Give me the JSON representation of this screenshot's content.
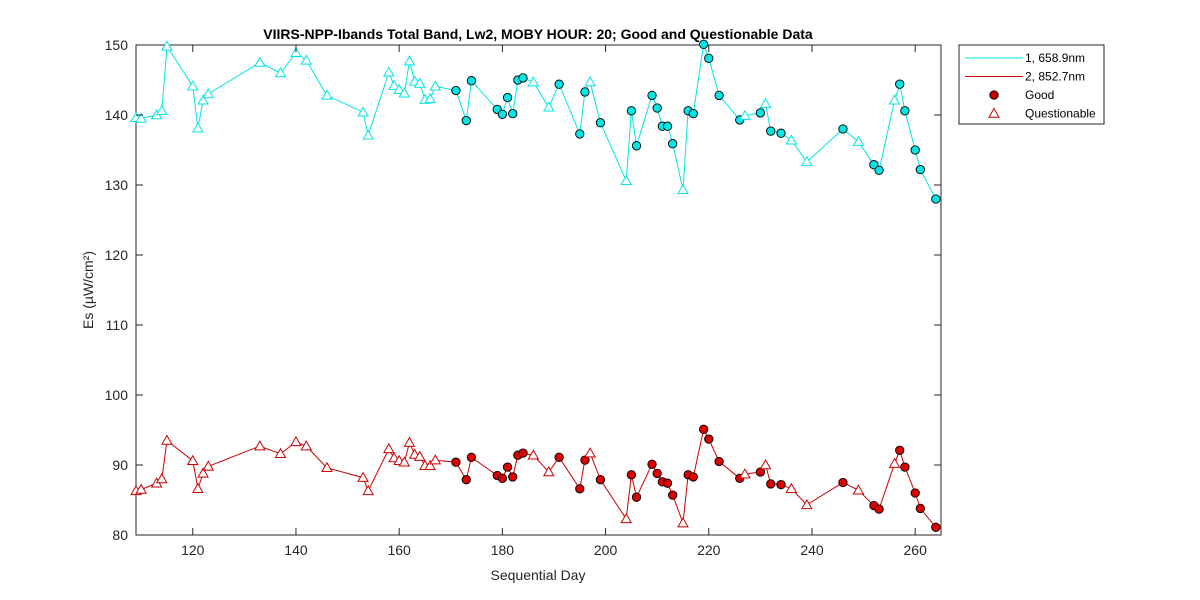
{
  "chart_data": {
    "type": "line",
    "title": "VIIRS-NPP-Ibands Total Band,  Lw2, MOBY HOUR: 20;  Good and Questionable Data",
    "xlabel": "Sequential Day",
    "ylabel": "Es (µW/cm²)",
    "xlim": [
      109,
      265
    ],
    "ylim": [
      80,
      150
    ],
    "x_ticks": [
      120,
      140,
      160,
      180,
      200,
      220,
      240,
      260
    ],
    "y_ticks": [
      80,
      90,
      100,
      110,
      120,
      130,
      140,
      150
    ],
    "grid": false,
    "legend_position": "outside-top-right",
    "legend": [
      {
        "label": "1, 658.9nm",
        "kind": "line",
        "color": "#00e5e5"
      },
      {
        "label": "2, 852.7nm",
        "kind": "line",
        "color": "#cc0000"
      },
      {
        "label": "Good",
        "kind": "marker-circle",
        "color": "#cc0000"
      },
      {
        "label": "Questionable",
        "kind": "marker-triangle",
        "color": "#cc0000"
      }
    ],
    "series": [
      {
        "name": "1, 658.9nm",
        "color": "#00e5e5",
        "fill": "#00e5e5",
        "x": [
          109,
          110,
          113,
          114,
          115,
          120,
          121,
          122,
          123,
          133,
          137,
          140,
          142,
          146,
          153,
          154,
          158,
          159,
          160,
          161,
          162,
          163,
          164,
          165,
          166,
          167,
          171,
          173,
          174,
          179,
          180,
          181,
          182,
          183,
          184,
          186,
          189,
          191,
          195,
          196,
          197,
          199,
          204,
          205,
          206,
          209,
          210,
          211,
          212,
          213,
          215,
          216,
          217,
          219,
          220,
          222,
          226,
          227,
          230,
          231,
          232,
          234,
          236,
          239,
          246,
          249,
          252,
          253,
          256,
          257,
          258,
          260,
          261,
          264
        ],
        "y": [
          139.6,
          139.5,
          140.0,
          140.6,
          149.8,
          144.1,
          138.1,
          142.1,
          143.0,
          147.5,
          146.0,
          148.9,
          147.8,
          142.8,
          140.4,
          137.1,
          146.1,
          144.2,
          143.6,
          143.1,
          147.7,
          144.8,
          144.5,
          142.2,
          142.3,
          144.1,
          143.5,
          139.2,
          144.9,
          140.8,
          140.1,
          142.5,
          140.2,
          145.0,
          145.3,
          144.7,
          141.1,
          144.4,
          137.3,
          143.3,
          144.7,
          138.9,
          130.6,
          140.6,
          135.6,
          142.8,
          141.0,
          138.4,
          138.4,
          135.9,
          129.3,
          140.6,
          140.2,
          150.1,
          148.1,
          142.8,
          139.3,
          139.9,
          140.3,
          141.6,
          137.7,
          137.4,
          136.4,
          133.3,
          138.0,
          136.2,
          132.9,
          132.1,
          142.1,
          144.4,
          140.6,
          135.0,
          132.2,
          128.0
        ],
        "quality": [
          "Q",
          "Q",
          "Q",
          "Q",
          "Q",
          "Q",
          "Q",
          "Q",
          "Q",
          "Q",
          "Q",
          "Q",
          "Q",
          "Q",
          "Q",
          "Q",
          "Q",
          "Q",
          "Q",
          "Q",
          "Q",
          "Q",
          "Q",
          "Q",
          "Q",
          "Q",
          "G",
          "G",
          "G",
          "G",
          "G",
          "G",
          "G",
          "G",
          "G",
          "Q",
          "Q",
          "G",
          "G",
          "G",
          "Q",
          "G",
          "Q",
          "G",
          "G",
          "G",
          "G",
          "G",
          "G",
          "G",
          "Q",
          "G",
          "G",
          "G",
          "G",
          "G",
          "G",
          "Q",
          "G",
          "Q",
          "G",
          "G",
          "Q",
          "Q",
          "G",
          "Q",
          "G",
          "G",
          "Q",
          "G",
          "G",
          "G",
          "G",
          "G"
        ]
      },
      {
        "name": "2, 852.7nm",
        "color": "#cc0000",
        "fill": "#dd0000",
        "x": [
          109,
          110,
          113,
          114,
          115,
          120,
          121,
          122,
          123,
          133,
          137,
          140,
          142,
          146,
          153,
          154,
          158,
          159,
          160,
          161,
          162,
          163,
          164,
          165,
          166,
          167,
          171,
          173,
          174,
          179,
          180,
          181,
          182,
          183,
          184,
          186,
          189,
          191,
          195,
          196,
          197,
          199,
          204,
          205,
          206,
          209,
          210,
          211,
          212,
          213,
          215,
          216,
          217,
          219,
          220,
          222,
          226,
          227,
          230,
          231,
          232,
          234,
          236,
          239,
          246,
          249,
          252,
          253,
          256,
          257,
          258,
          260,
          261,
          264
        ],
        "y": [
          86.3,
          86.5,
          87.4,
          88.0,
          93.5,
          90.6,
          86.6,
          88.8,
          89.8,
          92.7,
          91.6,
          93.3,
          92.7,
          89.6,
          88.2,
          86.3,
          92.3,
          91.0,
          90.6,
          90.4,
          93.2,
          91.5,
          91.2,
          89.9,
          89.9,
          90.7,
          90.4,
          87.9,
          91.1,
          88.5,
          88.1,
          89.7,
          88.3,
          91.4,
          91.7,
          91.4,
          89.0,
          91.1,
          86.6,
          90.7,
          91.7,
          87.9,
          82.3,
          88.6,
          85.4,
          90.1,
          88.8,
          87.6,
          87.4,
          85.7,
          81.7,
          88.6,
          88.3,
          95.1,
          93.7,
          90.5,
          88.1,
          88.7,
          89.0,
          90.0,
          87.3,
          87.2,
          86.6,
          84.3,
          87.5,
          86.4,
          84.2,
          83.7,
          90.2,
          92.1,
          89.7,
          86.0,
          83.8,
          81.1
        ],
        "quality": [
          "Q",
          "Q",
          "Q",
          "Q",
          "Q",
          "Q",
          "Q",
          "Q",
          "Q",
          "Q",
          "Q",
          "Q",
          "Q",
          "Q",
          "Q",
          "Q",
          "Q",
          "Q",
          "Q",
          "Q",
          "Q",
          "Q",
          "Q",
          "Q",
          "Q",
          "Q",
          "G",
          "G",
          "G",
          "G",
          "G",
          "G",
          "G",
          "G",
          "G",
          "Q",
          "Q",
          "G",
          "G",
          "G",
          "Q",
          "G",
          "Q",
          "G",
          "G",
          "G",
          "G",
          "G",
          "G",
          "G",
          "Q",
          "G",
          "G",
          "G",
          "G",
          "G",
          "G",
          "Q",
          "G",
          "Q",
          "G",
          "G",
          "Q",
          "Q",
          "G",
          "Q",
          "G",
          "G",
          "Q",
          "G",
          "G",
          "G",
          "G",
          "G"
        ]
      }
    ]
  }
}
